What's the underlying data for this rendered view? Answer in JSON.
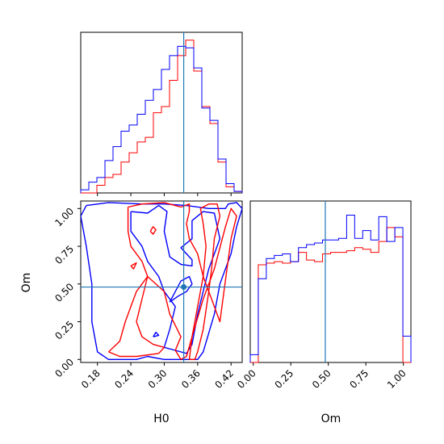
{
  "chart_data": {
    "type": "corner",
    "parameters": [
      "H0",
      "Om"
    ],
    "truth": {
      "H0": 0.335,
      "Om": 0.48
    },
    "colors": {
      "red": "#ff0000",
      "blue": "#0000ff",
      "truth": "#1f77b4"
    },
    "axes": {
      "H0": {
        "range": [
          0.15,
          0.44
        ],
        "ticks": [
          0.18,
          0.24,
          0.3,
          0.36,
          0.42
        ],
        "tick_labels": [
          "0.18",
          "0.24",
          "0.30",
          "0.36",
          "0.42"
        ],
        "xlabel": "H0"
      },
      "Om": {
        "range": [
          -0.02,
          1.05
        ],
        "ticks": [
          0.0,
          0.25,
          0.5,
          0.75,
          1.0
        ],
        "tick_labels": [
          "0.00",
          "0.25",
          "0.50",
          "0.75",
          "1.00"
        ],
        "xlabel": "Om",
        "ylabel": "Om"
      }
    },
    "hist_H0": {
      "bin_edges": [
        0.15,
        0.1645,
        0.179,
        0.1935,
        0.208,
        0.2225,
        0.237,
        0.2515,
        0.266,
        0.2805,
        0.295,
        0.3095,
        0.324,
        0.3385,
        0.353,
        0.3675,
        0.382,
        0.3965,
        0.411,
        0.4255,
        0.44
      ],
      "series": [
        {
          "color": "red",
          "values": [
            0,
            0,
            0.05,
            0.1,
            0.12,
            0.2,
            0.26,
            0.33,
            0.36,
            0.52,
            0.56,
            0.73,
            0.89,
            0.99,
            0.79,
            0.56,
            0.45,
            0.2,
            0.04,
            0.01
          ]
        },
        {
          "color": "blue",
          "values": [
            0.02,
            0.07,
            0.1,
            0.21,
            0.3,
            0.4,
            0.44,
            0.51,
            0.6,
            0.67,
            0.8,
            0.89,
            0.95,
            0.94,
            0.81,
            0.55,
            0.47,
            0.22,
            0.06,
            0.01
          ]
        }
      ]
    },
    "hist_Om": {
      "bin_edges": [
        -0.02,
        0.0335,
        0.087,
        0.1405,
        0.194,
        0.2475,
        0.301,
        0.3545,
        0.408,
        0.4615,
        0.515,
        0.5685,
        0.622,
        0.6755,
        0.729,
        0.7825,
        0.836,
        0.8895,
        0.943,
        0.9965,
        1.05
      ],
      "series": [
        {
          "color": "red",
          "values": [
            0,
            0.63,
            0.64,
            0.65,
            0.64,
            0.65,
            0.71,
            0.66,
            0.65,
            0.7,
            0.71,
            0.71,
            0.72,
            0.74,
            0.73,
            0.71,
            0.78,
            0.87,
            0.81,
            0
          ]
        },
        {
          "color": "blue",
          "values": [
            0.05,
            0.54,
            0.67,
            0.69,
            0.7,
            0.65,
            0.74,
            0.76,
            0.77,
            0.79,
            0.79,
            0.8,
            0.95,
            0.8,
            0.85,
            0.79,
            0.94,
            0.78,
            0.87,
            0.17
          ]
        }
      ]
    },
    "contours": [
      {
        "color": "blue",
        "points": [
          [
            0.16,
            1.02
          ],
          [
            0.2,
            1.04
          ],
          [
            0.26,
            1.03
          ],
          [
            0.3,
            1.03
          ],
          [
            0.34,
            1.02
          ],
          [
            0.38,
            1.0
          ],
          [
            0.41,
            1.0
          ],
          [
            0.415,
            1.03
          ],
          [
            0.43,
            1.04
          ],
          [
            0.44,
            1.0
          ],
          [
            0.43,
            0.88
          ],
          [
            0.42,
            0.7
          ],
          [
            0.4,
            0.5
          ],
          [
            0.39,
            0.3
          ],
          [
            0.37,
            0.05
          ],
          [
            0.36,
            0.0
          ],
          [
            0.3,
            0.0
          ],
          [
            0.27,
            0.02
          ],
          [
            0.25,
            0.0
          ],
          [
            0.2,
            0.0
          ],
          [
            0.18,
            0.05
          ],
          [
            0.17,
            0.25
          ],
          [
            0.17,
            0.5
          ],
          [
            0.16,
            0.75
          ],
          [
            0.15,
            0.95
          ],
          [
            0.16,
            1.02
          ]
        ]
      },
      {
        "color": "blue",
        "points": [
          [
            0.24,
            0.98
          ],
          [
            0.27,
            0.97
          ],
          [
            0.29,
            1.02
          ],
          [
            0.305,
            0.98
          ],
          [
            0.3,
            0.85
          ],
          [
            0.31,
            0.68
          ],
          [
            0.33,
            0.63
          ],
          [
            0.35,
            0.62
          ],
          [
            0.35,
            0.66
          ],
          [
            0.33,
            0.74
          ],
          [
            0.35,
            0.8
          ],
          [
            0.35,
            0.92
          ],
          [
            0.37,
            0.98
          ],
          [
            0.39,
            0.97
          ],
          [
            0.4,
            0.8
          ],
          [
            0.38,
            0.6
          ],
          [
            0.37,
            0.45
          ],
          [
            0.36,
            0.3
          ],
          [
            0.35,
            0.1
          ],
          [
            0.34,
            0.04
          ],
          [
            0.32,
            0.06
          ],
          [
            0.3,
            0.08
          ],
          [
            0.31,
            0.2
          ],
          [
            0.32,
            0.35
          ],
          [
            0.3,
            0.45
          ],
          [
            0.29,
            0.55
          ],
          [
            0.27,
            0.65
          ],
          [
            0.26,
            0.75
          ],
          [
            0.24,
            0.85
          ],
          [
            0.24,
            0.98
          ]
        ]
      },
      {
        "color": "blue",
        "points": [
          [
            0.31,
            0.38
          ],
          [
            0.325,
            0.42
          ],
          [
            0.34,
            0.45
          ],
          [
            0.35,
            0.5
          ],
          [
            0.345,
            0.55
          ],
          [
            0.33,
            0.52
          ],
          [
            0.32,
            0.45
          ],
          [
            0.31,
            0.38
          ]
        ]
      },
      {
        "color": "blue",
        "points": [
          [
            0.28,
            0.15
          ],
          [
            0.29,
            0.16
          ],
          [
            0.285,
            0.18
          ],
          [
            0.28,
            0.15
          ]
        ]
      },
      {
        "color": "red",
        "points": [
          [
            0.235,
            1.01
          ],
          [
            0.26,
            1.03
          ],
          [
            0.3,
            1.04
          ],
          [
            0.33,
            1.01
          ],
          [
            0.345,
            1.03
          ],
          [
            0.345,
            0.98
          ],
          [
            0.34,
            0.9
          ],
          [
            0.345,
            0.8
          ],
          [
            0.36,
            0.7
          ],
          [
            0.37,
            0.55
          ],
          [
            0.38,
            0.45
          ],
          [
            0.39,
            0.35
          ],
          [
            0.4,
            0.25
          ],
          [
            0.42,
            0.8
          ],
          [
            0.43,
            0.95
          ],
          [
            0.42,
            1.0
          ],
          [
            0.41,
            0.88
          ],
          [
            0.39,
            0.6
          ],
          [
            0.37,
            0.4
          ],
          [
            0.35,
            0.15
          ],
          [
            0.34,
            0.02
          ],
          [
            0.33,
            0.0
          ],
          [
            0.32,
            0.06
          ],
          [
            0.33,
            0.15
          ],
          [
            0.31,
            0.3
          ],
          [
            0.3,
            0.45
          ],
          [
            0.27,
            0.55
          ],
          [
            0.26,
            0.65
          ],
          [
            0.24,
            0.75
          ],
          [
            0.235,
            0.85
          ],
          [
            0.235,
            1.01
          ]
        ]
      },
      {
        "color": "red",
        "points": [
          [
            0.2,
            0.05
          ],
          [
            0.22,
            0.12
          ],
          [
            0.23,
            0.25
          ],
          [
            0.24,
            0.35
          ],
          [
            0.25,
            0.45
          ],
          [
            0.26,
            0.5
          ],
          [
            0.27,
            0.55
          ],
          [
            0.26,
            0.4
          ],
          [
            0.25,
            0.25
          ],
          [
            0.26,
            0.15
          ],
          [
            0.28,
            0.1
          ],
          [
            0.3,
            0.08
          ],
          [
            0.29,
            0.04
          ],
          [
            0.25,
            0.02
          ],
          [
            0.22,
            0.02
          ],
          [
            0.2,
            0.05
          ]
        ]
      },
      {
        "color": "red",
        "points": [
          [
            0.365,
            1.0
          ],
          [
            0.38,
            1.03
          ],
          [
            0.395,
            1.03
          ],
          [
            0.4,
            0.95
          ],
          [
            0.39,
            0.8
          ],
          [
            0.385,
            0.6
          ],
          [
            0.38,
            0.45
          ],
          [
            0.37,
            0.2
          ],
          [
            0.36,
            0.05
          ],
          [
            0.355,
            0.0
          ],
          [
            0.345,
            0.0
          ],
          [
            0.35,
            0.15
          ],
          [
            0.36,
            0.35
          ],
          [
            0.37,
            0.55
          ],
          [
            0.375,
            0.75
          ],
          [
            0.37,
            0.9
          ],
          [
            0.365,
            1.0
          ]
        ]
      },
      {
        "color": "red",
        "points": [
          [
            0.24,
            0.62
          ],
          [
            0.25,
            0.64
          ],
          [
            0.245,
            0.6
          ],
          [
            0.24,
            0.62
          ]
        ]
      },
      {
        "color": "red",
        "points": [
          [
            0.275,
            0.85
          ],
          [
            0.28,
            0.88
          ],
          [
            0.285,
            0.86
          ],
          [
            0.28,
            0.83
          ],
          [
            0.275,
            0.85
          ]
        ]
      }
    ]
  }
}
